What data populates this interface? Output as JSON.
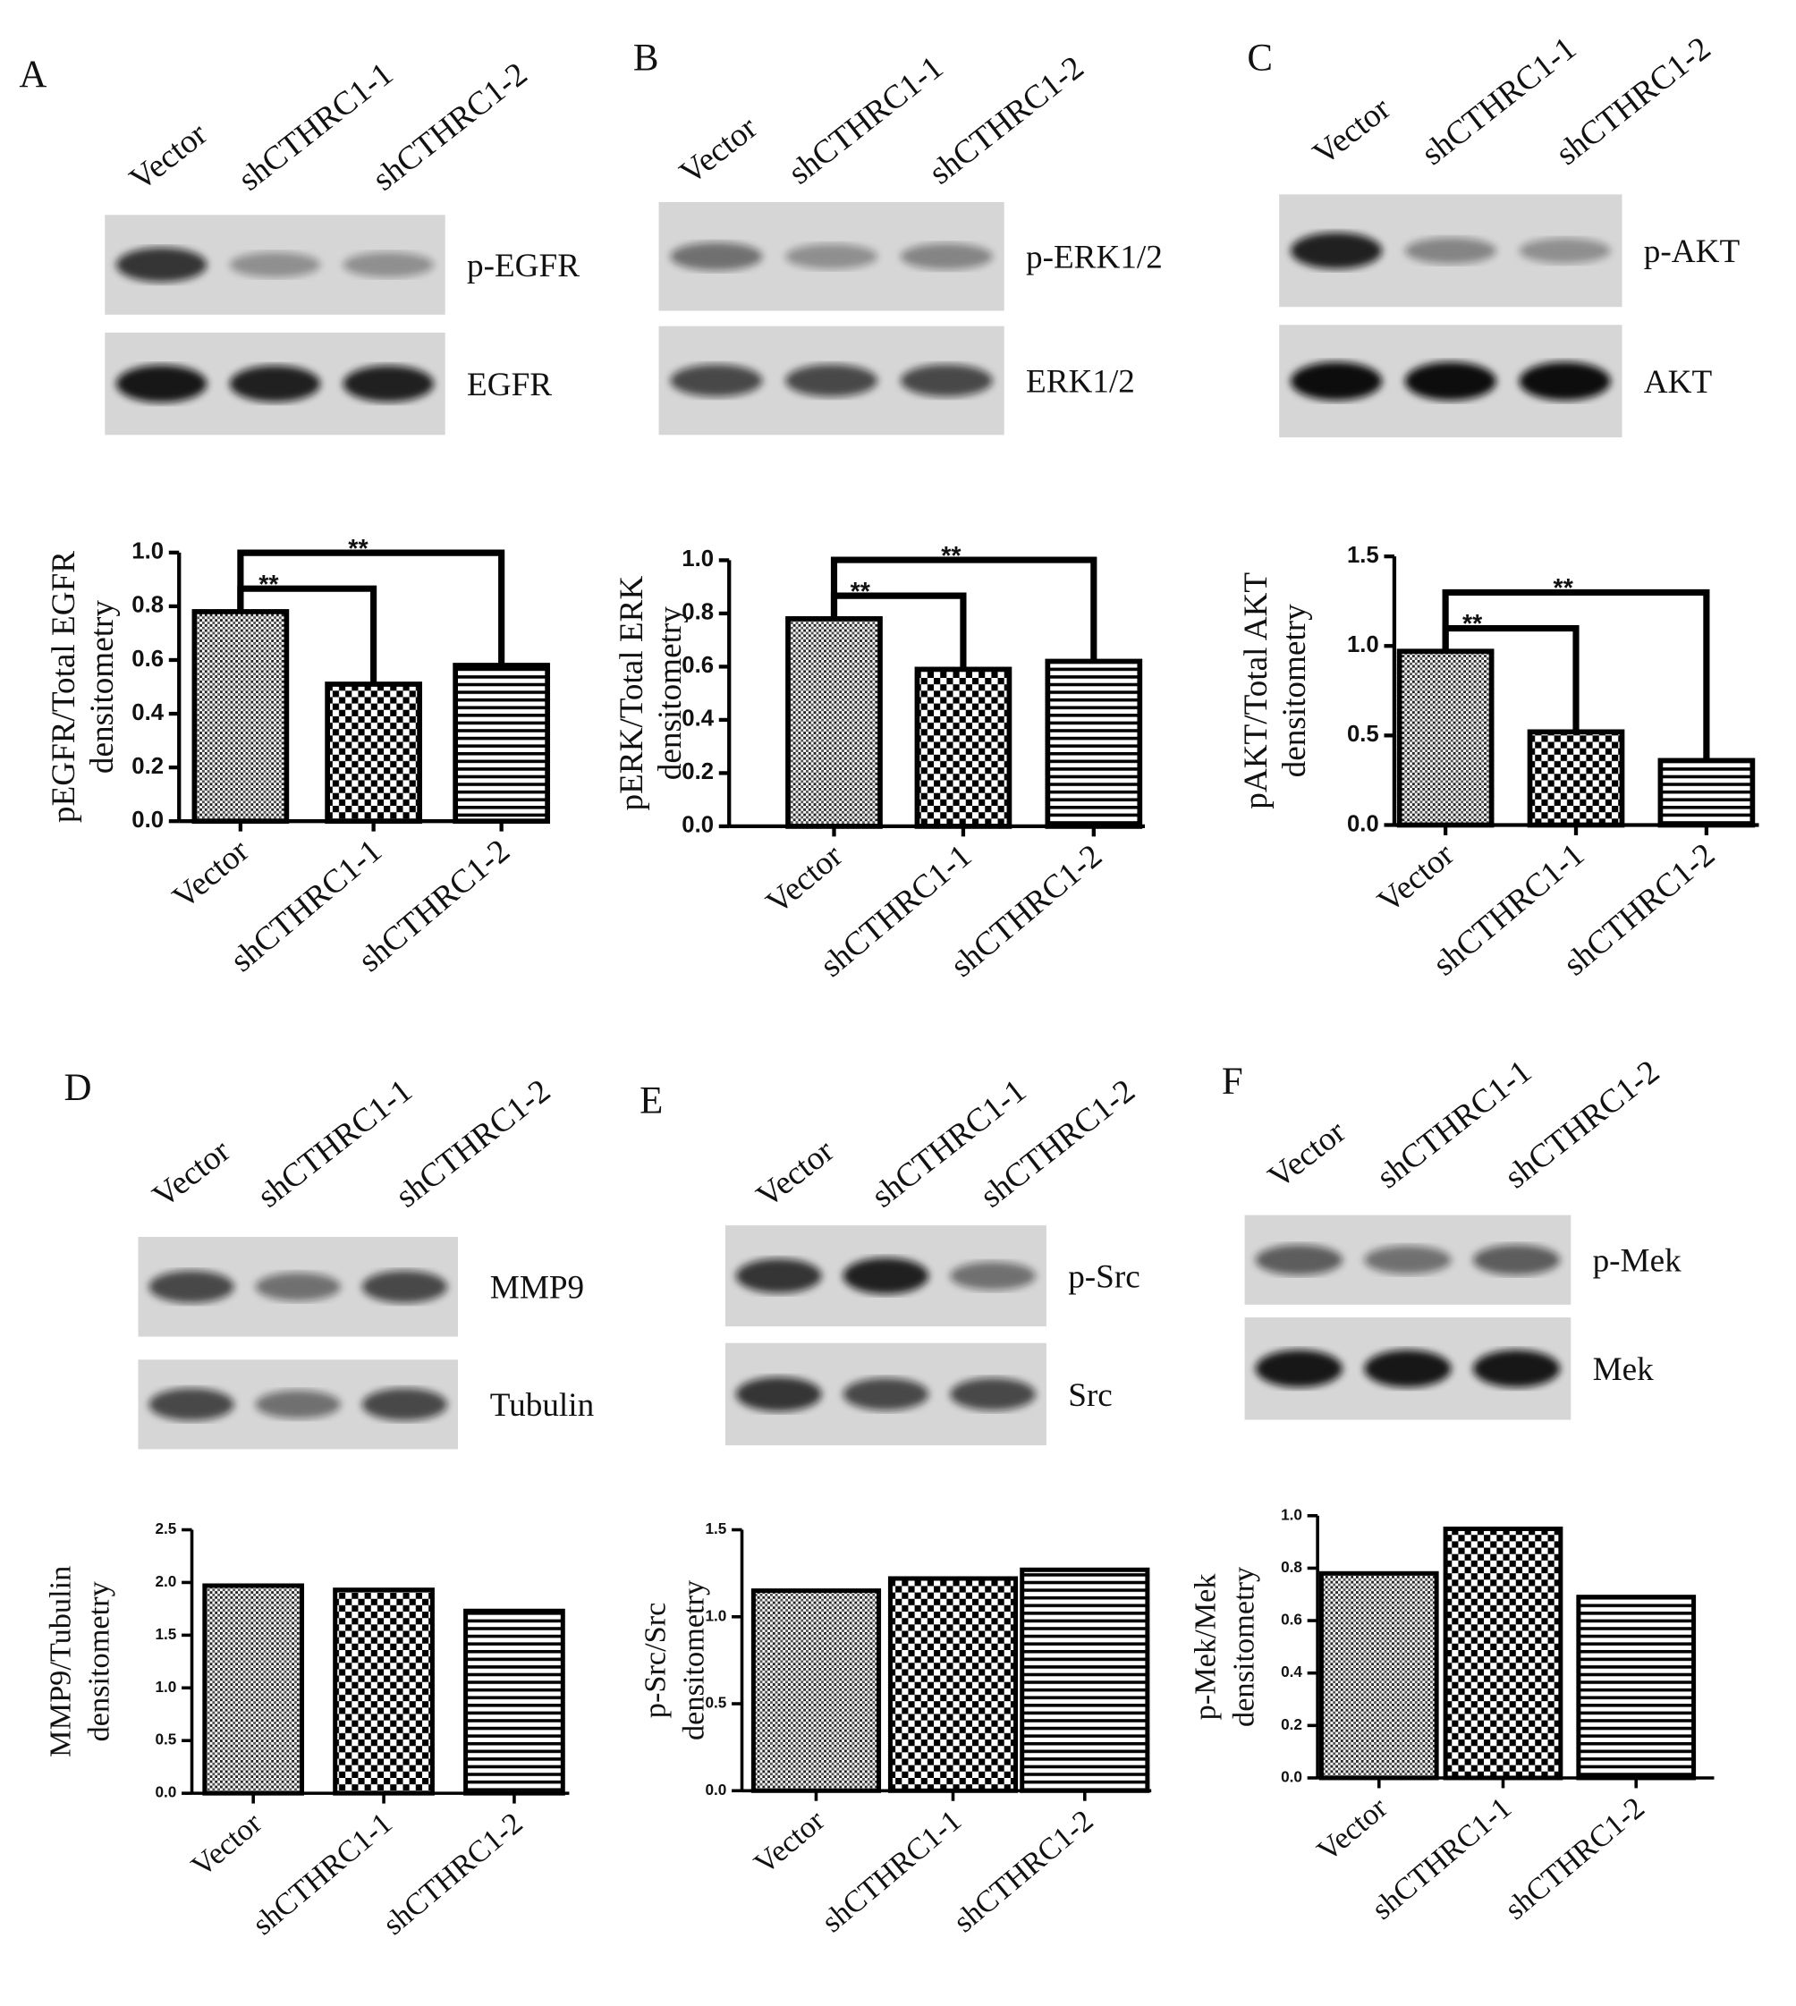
{
  "chart_data": [
    {
      "type": "bar",
      "panel": "A",
      "lane_labels": [
        "Vector",
        "shCTHRC1-1",
        "shCTHRC1-2"
      ],
      "blot_labels": [
        "p-EGFR",
        "EGFR"
      ],
      "ylabel": [
        "pEGFR/Total EGFR",
        "densitometry"
      ],
      "categories": [
        "Vector",
        "shCTHRC1-1",
        "shCTHRC1-2"
      ],
      "values": [
        0.78,
        0.51,
        0.58
      ],
      "ylim": [
        0,
        1.0
      ],
      "yticks": [
        {
          "value": 0,
          "label": "0.0"
        },
        0.2,
        0.4,
        0.6,
        0.8,
        {
          "value": 1,
          "label": "1.0"
        }
      ],
      "annotations": [
        "**",
        "**"
      ]
    },
    {
      "type": "bar",
      "panel": "B",
      "lane_labels": [
        "Vector",
        "shCTHRC1-1",
        "shCTHRC1-2"
      ],
      "blot_labels": [
        "p-ERK1/2",
        "ERK1/2"
      ],
      "ylabel": [
        "pERK/Total ERK",
        "densitometry"
      ],
      "categories": [
        "Vector",
        "shCTHRC1-1",
        "shCTHRC1-2"
      ],
      "values": [
        0.78,
        0.59,
        0.62
      ],
      "ylim": [
        0,
        1.0
      ],
      "yticks": [
        {
          "value": 0,
          "label": "0.0"
        },
        0.2,
        0.4,
        0.6,
        0.8,
        {
          "value": 1,
          "label": "1.0"
        }
      ],
      "annotations": [
        "**",
        "**"
      ]
    },
    {
      "type": "bar",
      "panel": "C",
      "lane_labels": [
        "Vector",
        "shCTHRC1-1",
        "shCTHRC1-2"
      ],
      "blot_labels": [
        "p-AKT",
        "AKT"
      ],
      "ylabel": [
        "pAKT/Total AKT",
        "densitometry"
      ],
      "categories": [
        "Vector",
        "shCTHRC1-1",
        "shCTHRC1-2"
      ],
      "values": [
        0.97,
        0.52,
        0.36
      ],
      "ylim": [
        0,
        1.5
      ],
      "yticks": [
        {
          "value": 0,
          "label": "0.0"
        },
        0.5,
        {
          "value": 1,
          "label": "1.0"
        },
        1.5
      ],
      "annotations": [
        "**",
        "**"
      ]
    },
    {
      "type": "bar",
      "panel": "D",
      "lane_labels": [
        "Vector",
        "shCTHRC1-1",
        "shCTHRC1-2"
      ],
      "blot_labels": [
        "MMP9",
        "Tubulin"
      ],
      "ylabel": [
        "MMP9/Tubulin",
        "densitometry"
      ],
      "categories": [
        "Vector",
        "shCTHRC1-1",
        "shCTHRC1-2"
      ],
      "values": [
        1.97,
        1.93,
        1.73
      ],
      "ylim": [
        0,
        2.5
      ],
      "yticks": [
        {
          "value": 0,
          "label": "0.0"
        },
        0.5,
        {
          "value": 1,
          "label": "1.0"
        },
        1.5,
        {
          "value": 2,
          "label": "2.0"
        },
        2.5
      ]
    },
    {
      "type": "bar",
      "panel": "E",
      "lane_labels": [
        "Vector",
        "shCTHRC1-1",
        "shCTHRC1-2"
      ],
      "blot_labels": [
        "p-Src",
        "Src"
      ],
      "ylabel": [
        "p-Src/Src",
        "densitometry"
      ],
      "categories": [
        "Vector",
        "shCTHRC1-1",
        "shCTHRC1-2"
      ],
      "values": [
        1.15,
        1.22,
        1.27
      ],
      "ylim": [
        0,
        1.5
      ],
      "yticks": [
        {
          "value": 0,
          "label": "0.0"
        },
        0.5,
        {
          "value": 1,
          "label": "1.0"
        },
        1.5
      ]
    },
    {
      "type": "bar",
      "panel": "F",
      "lane_labels": [
        "Vector",
        "shCTHRC1-1",
        "shCTHRC1-2"
      ],
      "blot_labels": [
        "p-Mek",
        "Mek"
      ],
      "ylabel": [
        "p-Mek/Mek",
        "densitometry"
      ],
      "categories": [
        "Vector",
        "shCTHRC1-1",
        "shCTHRC1-2"
      ],
      "values": [
        0.78,
        0.95,
        0.69
      ],
      "ylim": [
        0,
        1.0
      ],
      "yticks": [
        {
          "value": 0,
          "label": "0.0"
        },
        0.2,
        0.4,
        0.6,
        0.8,
        {
          "value": 1,
          "label": "1.0"
        }
      ]
    }
  ]
}
